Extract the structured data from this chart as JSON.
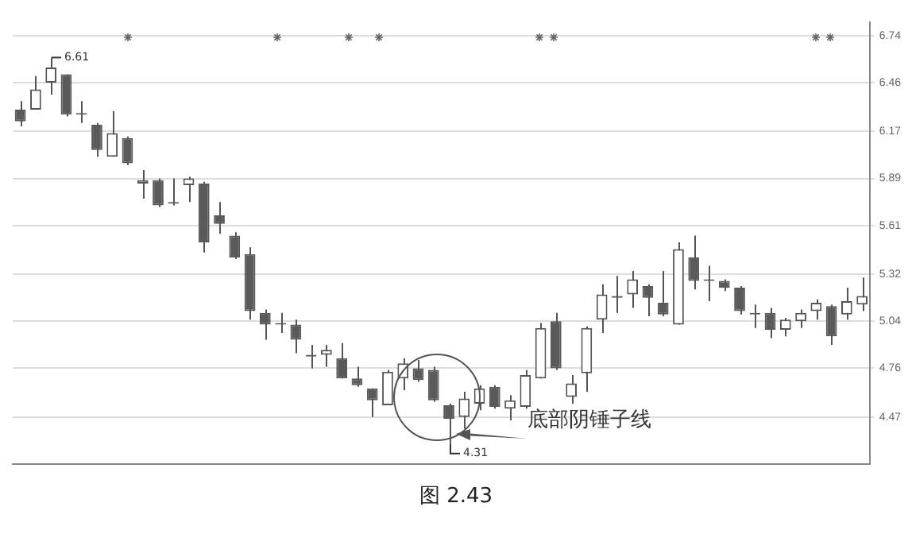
{
  "chart_data": {
    "type": "candlestick",
    "categories": [
      null,
      null,
      null,
      null,
      null,
      null,
      null,
      null,
      null,
      null,
      null,
      null,
      null,
      null,
      null,
      null,
      null,
      null,
      null,
      null,
      null,
      null,
      null,
      null,
      null,
      null,
      null,
      null,
      null,
      null,
      null,
      null,
      null,
      null,
      null,
      null,
      null,
      null,
      null,
      null,
      null,
      null,
      null,
      null,
      null,
      null,
      null,
      null,
      null,
      null,
      null,
      null,
      null,
      null,
      null,
      null
    ],
    "ohlc": [
      [
        6.3,
        6.35,
        6.2,
        6.23
      ],
      [
        6.3,
        6.5,
        6.3,
        6.42
      ],
      [
        6.46,
        6.61,
        6.39,
        6.55
      ],
      [
        6.51,
        6.51,
        6.26,
        6.27
      ],
      [
        6.28,
        6.35,
        6.22,
        6.27
      ],
      [
        6.21,
        6.22,
        6.02,
        6.06
      ],
      [
        6.02,
        6.29,
        6.02,
        6.16
      ],
      [
        6.13,
        6.14,
        5.97,
        5.98
      ],
      [
        5.86,
        5.94,
        5.77,
        5.88
      ],
      [
        5.88,
        5.89,
        5.72,
        5.73
      ],
      [
        5.75,
        5.89,
        5.73,
        5.74
      ],
      [
        5.85,
        5.9,
        5.75,
        5.89
      ],
      [
        5.86,
        5.87,
        5.45,
        5.51
      ],
      [
        5.67,
        5.75,
        5.56,
        5.62
      ],
      [
        5.55,
        5.57,
        5.41,
        5.42
      ],
      [
        5.44,
        5.48,
        5.05,
        5.1
      ],
      [
        5.09,
        5.11,
        4.93,
        5.02
      ],
      [
        5.03,
        5.09,
        4.97,
        5.02
      ],
      [
        5.02,
        5.05,
        4.85,
        4.93
      ],
      [
        4.84,
        4.9,
        4.76,
        4.83
      ],
      [
        4.84,
        4.9,
        4.77,
        4.87
      ],
      [
        4.82,
        4.91,
        4.7,
        4.7
      ],
      [
        4.7,
        4.77,
        4.65,
        4.66
      ],
      [
        4.64,
        4.64,
        4.47,
        4.57
      ],
      [
        4.54,
        4.75,
        4.54,
        4.74
      ],
      [
        4.7,
        4.82,
        4.63,
        4.79
      ],
      [
        4.76,
        4.81,
        4.68,
        4.69
      ],
      [
        4.75,
        4.77,
        4.56,
        4.57
      ],
      [
        4.54,
        4.55,
        4.31,
        4.46
      ],
      [
        4.47,
        4.62,
        4.4,
        4.58
      ],
      [
        4.55,
        4.66,
        4.51,
        4.64
      ],
      [
        4.65,
        4.66,
        4.52,
        4.53
      ],
      [
        4.52,
        4.6,
        4.45,
        4.57
      ],
      [
        4.53,
        4.75,
        4.52,
        4.72
      ],
      [
        4.7,
        5.03,
        4.7,
        5.0
      ],
      [
        5.04,
        5.09,
        4.75,
        4.76
      ],
      [
        4.59,
        4.72,
        4.55,
        4.67
      ],
      [
        4.73,
        5.01,
        4.62,
        5.0
      ],
      [
        5.05,
        5.26,
        4.97,
        5.2
      ],
      [
        5.19,
        5.31,
        5.09,
        5.18
      ],
      [
        5.2,
        5.34,
        5.12,
        5.29
      ],
      [
        5.25,
        5.26,
        5.07,
        5.18
      ],
      [
        5.15,
        5.34,
        5.07,
        5.08
      ],
      [
        5.02,
        5.51,
        5.02,
        5.47
      ],
      [
        5.42,
        5.55,
        5.23,
        5.28
      ],
      [
        5.29,
        5.37,
        5.16,
        5.28
      ],
      [
        5.28,
        5.29,
        5.22,
        5.24
      ],
      [
        5.24,
        5.25,
        5.08,
        5.1
      ],
      [
        5.09,
        5.14,
        5.0,
        5.08
      ],
      [
        5.09,
        5.12,
        4.94,
        4.99
      ],
      [
        4.99,
        5.06,
        4.95,
        5.05
      ],
      [
        5.04,
        5.11,
        5.0,
        5.09
      ],
      [
        5.1,
        5.17,
        5.05,
        5.15
      ],
      [
        5.13,
        5.14,
        4.9,
        4.95
      ],
      [
        5.08,
        5.24,
        5.05,
        5.16
      ],
      [
        5.14,
        5.3,
        5.1,
        5.19
      ]
    ],
    "colors": [
      "#5a5a5a",
      "#555555",
      "#555555",
      "#5a5a5a",
      "#5a5a5a",
      "#5a5a5a",
      "#555555",
      "#5a5a5a",
      "#555555",
      "#5a5a5a",
      "#5a5a5a",
      "#555555",
      "#5a5a5a",
      "#5a5a5a",
      "#5a5a5a",
      "#5a5a5a",
      "#5a5a5a",
      "#5a5a5a",
      "#5a5a5a",
      "#5a5a5a",
      "#555555",
      "#5a5a5a",
      "#5a5a5a",
      "#5a5a5a",
      "#555555",
      "#555555",
      "#5a5a5a",
      "#5a5a5a",
      "#5a5a5a",
      "#555555",
      "#555555",
      "#5a5a5a",
      "#555555",
      "#555555",
      "#555555",
      "#5a5a5a",
      "#555555",
      "#555555",
      "#555555",
      "#5a5a5a",
      "#555555",
      "#5a5a5a",
      "#5a5a5a",
      "#555555",
      "#5a5a5a",
      "#5a5a5a",
      "#5a5a5a",
      "#5a5a5a",
      "#5a5a5a",
      "#5a5a5a",
      "#555555",
      "#555555",
      "#555555",
      "#5a5a5a",
      "#555555",
      "#555555"
    ],
    "ylim": [
      4.19,
      6.82
    ],
    "yticks": [
      4.47,
      4.76,
      5.04,
      5.32,
      5.61,
      5.89,
      6.17,
      6.46,
      6.74
    ],
    "grid": "y",
    "tick_labels": "y",
    "annotations": [
      "6.61",
      "4.31",
      "底部阴锤子线",
      "图 2.43"
    ]
  }
}
